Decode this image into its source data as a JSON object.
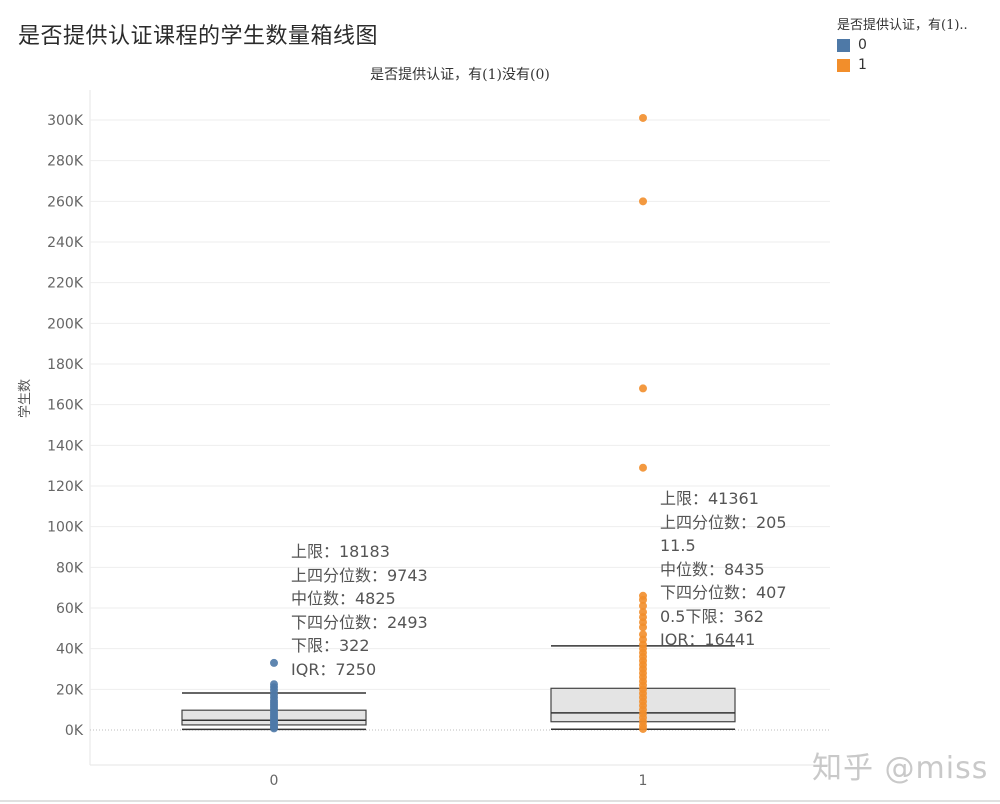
{
  "title": "是否提供认证课程的学生数量箱线图",
  "legend": {
    "title": "是否提供认证，有(1)..",
    "items": [
      {
        "label": "0",
        "color": "#4e79a7"
      },
      {
        "label": "1",
        "color": "#f28e2b"
      }
    ]
  },
  "header_label": "是否提供认证，有(1)没有(0)",
  "watermark": "知乎 @miss",
  "annotations": [
    {
      "lines": [
        "上限：18183",
        "上四分位数：9743",
        "中位数：4825",
        "下四分位数：2493",
        "下限：322",
        "IQR：7250"
      ]
    },
    {
      "lines": [
        "上限：41361",
        "上四分位数：205",
        "11.5",
        "中位数：8435",
        "下四分位数：407",
        "0.5下限：362",
        "IQR：16441"
      ]
    }
  ],
  "chart_data": {
    "type": "boxplot",
    "xlabel": "",
    "ylabel": "学生数",
    "categories": [
      "0",
      "1"
    ],
    "ylim": [
      -17000,
      310000
    ],
    "yticks": [
      0,
      20000,
      40000,
      60000,
      80000,
      100000,
      120000,
      140000,
      160000,
      180000,
      200000,
      220000,
      240000,
      260000,
      280000,
      300000
    ],
    "ytick_labels": [
      "0K",
      "20K",
      "40K",
      "60K",
      "80K",
      "100K",
      "120K",
      "140K",
      "160K",
      "180K",
      "200K",
      "220K",
      "240K",
      "260K",
      "280K",
      "300K"
    ],
    "series": [
      {
        "name": "0",
        "color": "#4e79a7",
        "whisker_high": 18183,
        "q3": 9743,
        "median": 4825,
        "q1": 2493,
        "whisker_low": 322,
        "iqr": 7250,
        "points": [
          33000,
          22500,
          21000,
          19500,
          17500,
          16000,
          14500,
          13500,
          12500,
          11500,
          10500,
          9500,
          8500,
          7500,
          6500,
          5500,
          4500,
          3500,
          2500,
          1500,
          800
        ]
      },
      {
        "name": "1",
        "color": "#f28e2b",
        "whisker_high": 41361,
        "q3": 20511.5,
        "median": 8435,
        "q1": 4070.5,
        "whisker_low": 362,
        "iqr": 16441,
        "points": [
          301000,
          260000,
          168000,
          129000,
          66000,
          64000,
          61000,
          58000,
          55500,
          53000,
          50500,
          47000,
          44500,
          42000,
          40000,
          38000,
          36000,
          34000,
          32000,
          30000,
          28000,
          26000,
          24000,
          22000,
          20000,
          18000,
          16000,
          14000,
          12000,
          10000,
          8000,
          6000,
          4000,
          2000,
          500
        ]
      }
    ],
    "grid": true
  }
}
